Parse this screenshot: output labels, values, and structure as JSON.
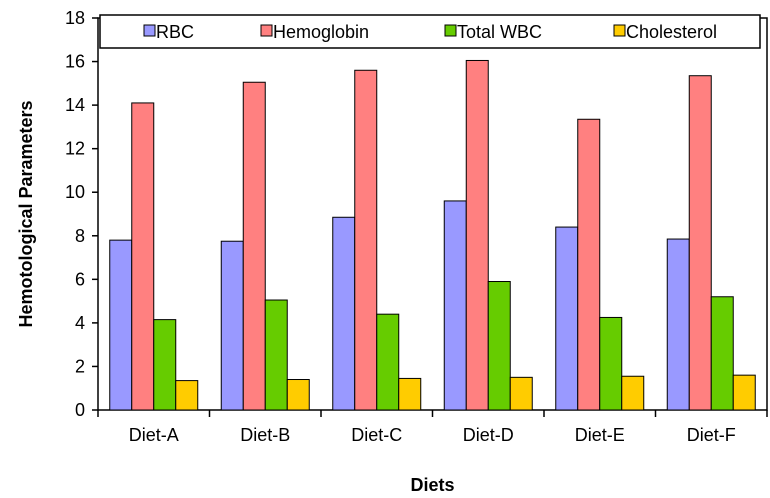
{
  "chart_data": {
    "type": "bar",
    "title": "",
    "xlabel": "Diets",
    "ylabel": "Hemotological Parameters",
    "ylim": [
      0,
      18
    ],
    "ytick_step": 2,
    "categories": [
      "Diet-A",
      "Diet-B",
      "Diet-C",
      "Diet-D",
      "Diet-E",
      "Diet-F"
    ],
    "series": [
      {
        "name": "RBC",
        "color": "#9999FF",
        "values": [
          7.8,
          7.75,
          8.85,
          9.6,
          8.4,
          7.85
        ]
      },
      {
        "name": "Hemoglobin",
        "color": "#FF8080",
        "values": [
          14.1,
          15.05,
          15.6,
          16.05,
          13.35,
          15.35
        ]
      },
      {
        "name": "Total WBC",
        "color": "#66CC00",
        "values": [
          4.15,
          5.05,
          4.4,
          5.9,
          4.25,
          5.2
        ]
      },
      {
        "name": "Cholesterol",
        "color": "#FFCC00",
        "values": [
          1.35,
          1.4,
          1.45,
          1.5,
          1.55,
          1.6
        ]
      }
    ],
    "legend": "top",
    "grid": false
  }
}
